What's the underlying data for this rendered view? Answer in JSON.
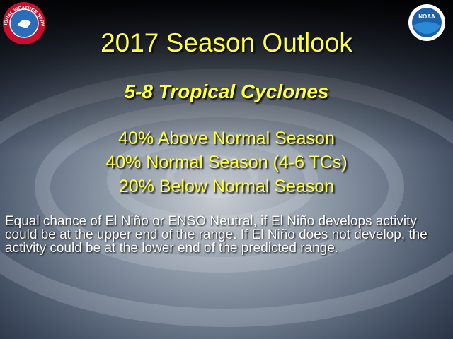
{
  "logos": {
    "left": "NATIONAL WEATHER SERVICE",
    "right": "NOAA"
  },
  "title": "2017 Season Outlook",
  "subtitle": "5-8 Tropical Cyclones",
  "outlook": [
    "40% Above Normal Season",
    "40% Normal Season (4-6 TCs)",
    "20% Below Normal Season"
  ],
  "note": "Equal chance of El Niño or ENSO Neutral, if El Niño develops activity could be at the upper end of the range. If El Niño does not develop, the activity could be at the lower end of the predicted range."
}
